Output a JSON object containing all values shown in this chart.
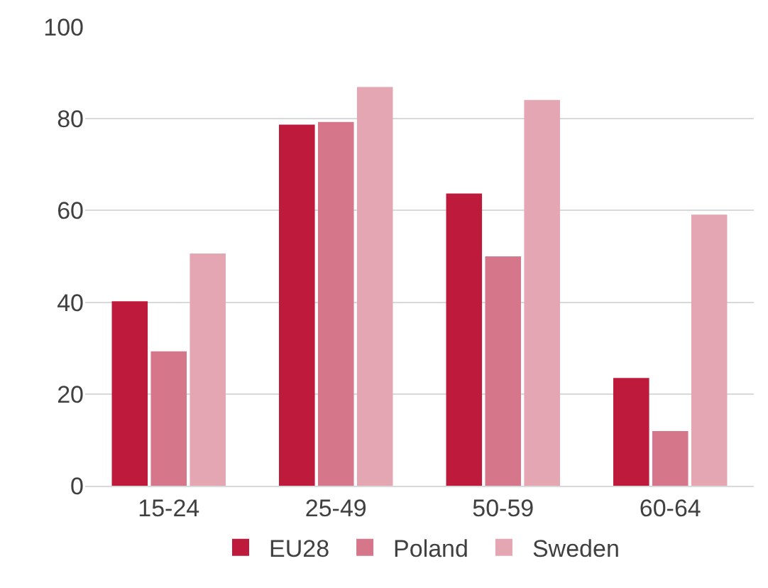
{
  "chart_data": {
    "type": "bar",
    "categories": [
      "15-24",
      "25-49",
      "50-59",
      "60-64"
    ],
    "series": [
      {
        "name": "EU28",
        "color": "#be1a3c",
        "values": [
          40.2,
          78.7,
          63.7,
          23.5
        ]
      },
      {
        "name": "Poland",
        "color": "#d5768a",
        "values": [
          29.3,
          79.3,
          50.0,
          11.9
        ]
      },
      {
        "name": "Sweden",
        "color": "#e5a6b4",
        "values": [
          50.6,
          86.9,
          84.1,
          59.1
        ]
      }
    ],
    "ylim": [
      0,
      100
    ],
    "yticks": [
      0,
      20,
      40,
      60,
      80,
      100
    ],
    "grid": "y",
    "legend": "bottom"
  }
}
